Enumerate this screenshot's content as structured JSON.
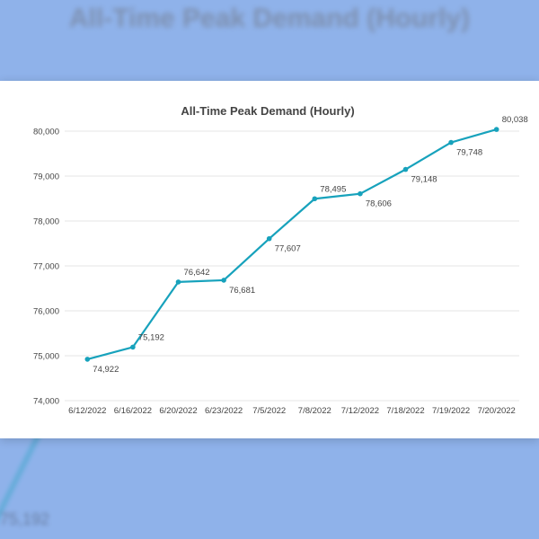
{
  "background": {
    "blurred_title": "All-Time Peak Demand (Hourly)",
    "blurred_label": "75,192"
  },
  "colors": {
    "page_background": "#8fb2ea",
    "line": "#17a2bc",
    "grid": "#e4e4e4"
  },
  "chart_data": {
    "type": "line",
    "title": "All-Time Peak Demand (Hourly)",
    "xlabel": "",
    "ylabel": "",
    "categories": [
      "6/12/2022",
      "6/16/2022",
      "6/20/2022",
      "6/23/2022",
      "7/5/2022",
      "7/8/2022",
      "7/12/2022",
      "7/18/2022",
      "7/19/2022",
      "7/20/2022"
    ],
    "values": [
      74922,
      75192,
      76642,
      76681,
      77607,
      78495,
      78606,
      79148,
      79748,
      80038
    ],
    "data_labels": [
      "74,922",
      "75,192",
      "76,642",
      "76,681",
      "77,607",
      "78,495",
      "78,606",
      "79,148",
      "79,748",
      "80,038"
    ],
    "y_ticks": [
      "74,000",
      "75,000",
      "76,000",
      "77,000",
      "78,000",
      "79,000",
      "80,000"
    ],
    "y_tick_values": [
      74000,
      75000,
      76000,
      77000,
      78000,
      79000,
      80000
    ],
    "ylim": [
      74000,
      80000
    ],
    "grid": true,
    "legend": "none"
  }
}
